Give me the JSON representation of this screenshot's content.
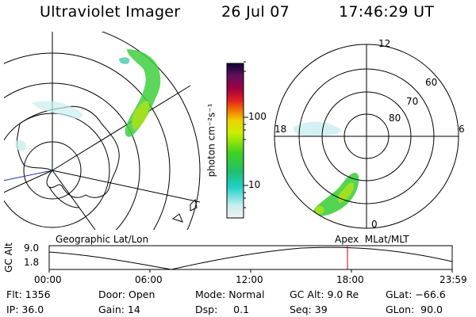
{
  "header": {
    "title": "Ultraviolet Imager",
    "date": "26 Jul 07",
    "time": "17:46:29 UT"
  },
  "colorbar": {
    "unit_label": "photon cm⁻²s⁻¹",
    "ticks": [
      "100",
      "10"
    ]
  },
  "left_panel": {
    "label": "Geographic Lat/Lon"
  },
  "right_panel": {
    "label": "Apex  MLat/MLT",
    "mlt_labels": [
      "12",
      "18",
      "6",
      "0"
    ],
    "lat_labels": [
      "60",
      "70",
      "80"
    ]
  },
  "timeline": {
    "y_label": "GC Alt",
    "y_ticks": [
      "9.0",
      "1.8"
    ],
    "x_ticks": [
      "00:00",
      "06:00",
      "12:00",
      "18:00",
      "23:59"
    ],
    "marker_color": "#cc0000"
  },
  "status": {
    "flt": "Flt: 1356",
    "ip": "IP: 36.0",
    "door": "Door: Open",
    "gain": "Gain: 14",
    "mode": "Mode: Normal",
    "dsp": "Dsp:     0.1",
    "gcalt": "GC Alt: 9.0 Re",
    "seq": "Seq: 39",
    "glat": "GLat: −66.6",
    "glon": "GLon:  90.0"
  }
}
